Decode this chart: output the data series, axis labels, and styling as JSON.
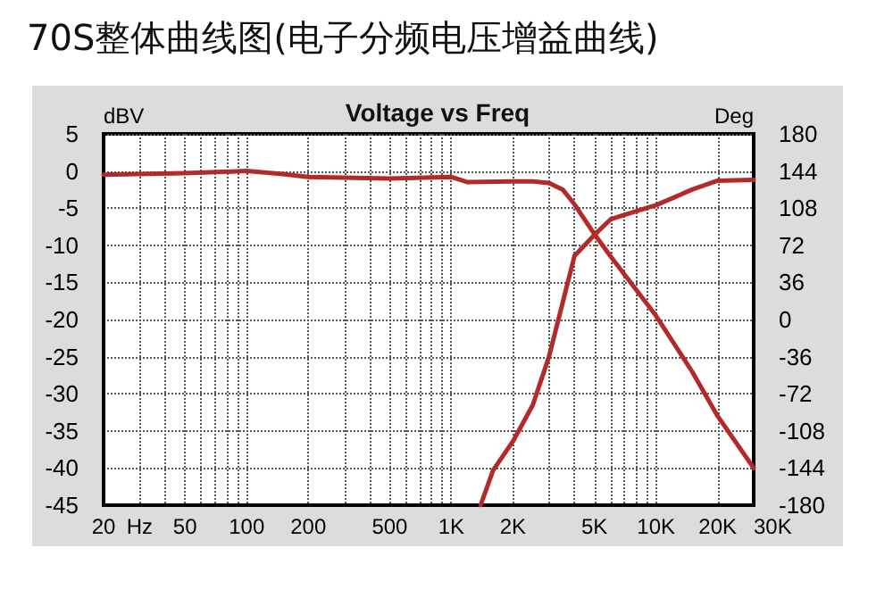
{
  "chart_data": {
    "type": "line",
    "title": "70S整体曲线图(电子分频电压增益曲线)",
    "subtitle": "Voltage vs Freq",
    "ylabel": "dBV",
    "y2label": "Deg",
    "log": "x",
    "xlim": [
      20,
      30000
    ],
    "xticks": [
      20,
      {
        "value": 30,
        "label": "Hz"
      },
      {
        "value": 40,
        "label": null
      },
      50,
      {
        "value": 60,
        "label": null
      },
      {
        "value": 70,
        "label": null
      },
      {
        "value": 80,
        "label": null
      },
      {
        "value": 90,
        "label": null
      },
      100,
      200,
      {
        "value": 300,
        "label": null
      },
      {
        "value": 400,
        "label": null
      },
      500,
      {
        "value": 600,
        "label": null
      },
      {
        "value": 700,
        "label": null
      },
      {
        "value": 800,
        "label": null
      },
      {
        "value": 900,
        "label": null
      },
      {
        "value": 1000,
        "label": "1K"
      },
      {
        "value": 2000,
        "label": "2K"
      },
      {
        "value": 3000,
        "label": null
      },
      {
        "value": 4000,
        "label": null
      },
      {
        "value": 5000,
        "label": "5K"
      },
      {
        "value": 6000,
        "label": null
      },
      {
        "value": 7000,
        "label": null
      },
      {
        "value": 8000,
        "label": null
      },
      {
        "value": 9000,
        "label": null
      },
      {
        "value": 10000,
        "label": "10K"
      },
      {
        "value": 20000,
        "label": "20K"
      },
      {
        "value": 30000,
        "label": "30K"
      }
    ],
    "ylim": [
      -45,
      5
    ],
    "yticks": [
      5,
      0,
      -5,
      -10,
      -15,
      -20,
      -25,
      -30,
      -35,
      -40,
      -45
    ],
    "y2lim": [
      -180,
      180
    ],
    "y2ticks": [
      180,
      144,
      108,
      72,
      36,
      0,
      -36,
      -72,
      -108,
      -144,
      -180
    ],
    "grid": true,
    "marker": "none",
    "line_style": "solid",
    "series": [
      {
        "color": "#b22a2a",
        "x": [
          20,
          50,
          100,
          150,
          200,
          500,
          1000,
          1200,
          2000,
          2500,
          3000,
          3500,
          4000,
          5000,
          6000,
          8000,
          10000,
          15000,
          20000,
          30000
        ],
        "values": [
          -0.5,
          -0.3,
          0,
          -0.4,
          -0.8,
          -1,
          -0.8,
          -1.5,
          -1.4,
          -1.4,
          -1.6,
          -2.5,
          -4.5,
          -8.5,
          -11.5,
          -16,
          -19.5,
          -27,
          -33,
          -40
        ]
      },
      {
        "color": "#b22a2a",
        "x": [
          1390,
          1600,
          2000,
          2500,
          3000,
          4000,
          5000,
          6000,
          8000,
          10000,
          15000,
          20000,
          30000
        ],
        "values": [
          -45,
          -40.3,
          -36.4,
          -31.5,
          -25,
          -11.4,
          -8.6,
          -6.5,
          -5.4,
          -4.6,
          -2.5,
          -1.3,
          -1.2
        ]
      }
    ]
  }
}
